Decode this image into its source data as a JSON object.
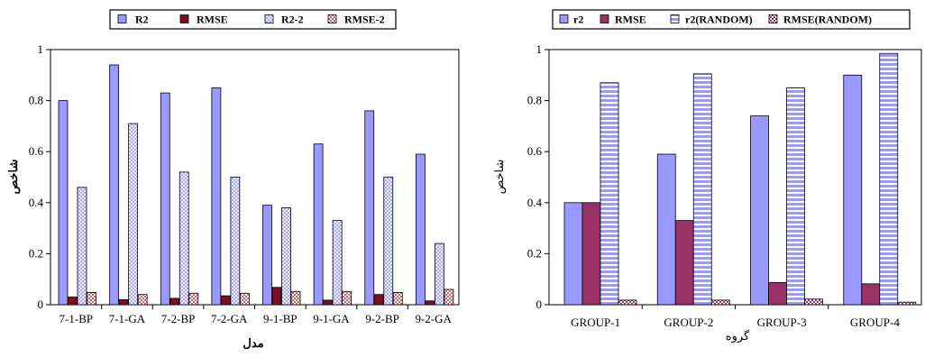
{
  "chart_data": [
    {
      "type": "bar",
      "title": "",
      "xlabel": "مدل",
      "ylabel": "شاخص",
      "ylim": [
        0,
        1
      ],
      "yticks": [
        "0",
        "0.2",
        "0.4",
        "0.6",
        "0.8",
        "1"
      ],
      "grid": false,
      "legend_position": "top",
      "categories": [
        "7-1-BP",
        "7-1-GA",
        "7-2-BP",
        "7-2-GA",
        "9-1-BP",
        "9-1-GA",
        "9-2-BP",
        "9-2-GA"
      ],
      "series": [
        {
          "name": "R2",
          "color": "#9999ff",
          "pattern": "solid",
          "values": [
            0.8,
            0.94,
            0.83,
            0.85,
            0.39,
            0.63,
            0.76,
            0.59
          ]
        },
        {
          "name": "RMSE",
          "color": "#7a1020",
          "pattern": "solid",
          "values": [
            0.03,
            0.02,
            0.025,
            0.035,
            0.068,
            0.018,
            0.04,
            0.015
          ]
        },
        {
          "name": "R2-2",
          "color": "#9999ff",
          "pattern": "crosshatch",
          "values": [
            0.46,
            0.71,
            0.52,
            0.5,
            0.38,
            0.33,
            0.5,
            0.24
          ]
        },
        {
          "name": "RMSE-2",
          "color": "#cc6666",
          "pattern": "checker",
          "values": [
            0.048,
            0.04,
            0.045,
            0.045,
            0.052,
            0.052,
            0.048,
            0.06
          ]
        }
      ]
    },
    {
      "type": "bar",
      "title": "",
      "xlabel": "گروه",
      "ylabel": "شاخص",
      "ylim": [
        0,
        1
      ],
      "yticks": [
        "0",
        "0.2",
        "0.4",
        "0.6",
        "0.8",
        "1"
      ],
      "grid": false,
      "legend_position": "top",
      "categories": [
        "GROUP-1",
        "GROUP-2",
        "GROUP-3",
        "GROUP-4"
      ],
      "series": [
        {
          "name": "r2",
          "color": "#9999ff",
          "pattern": "solid",
          "values": [
            0.4,
            0.59,
            0.74,
            0.9
          ]
        },
        {
          "name": "RMSE",
          "color": "#993366",
          "pattern": "solid",
          "values": [
            0.4,
            0.33,
            0.087,
            0.082
          ]
        },
        {
          "name": "r2(RANDOM)",
          "color": "#9999ff",
          "pattern": "stripes",
          "values": [
            0.87,
            0.905,
            0.85,
            0.985
          ]
        },
        {
          "name": "RMSE(RANDOM)",
          "color": "#993366",
          "pattern": "checker",
          "values": [
            0.018,
            0.018,
            0.022,
            0.01
          ]
        }
      ]
    }
  ]
}
